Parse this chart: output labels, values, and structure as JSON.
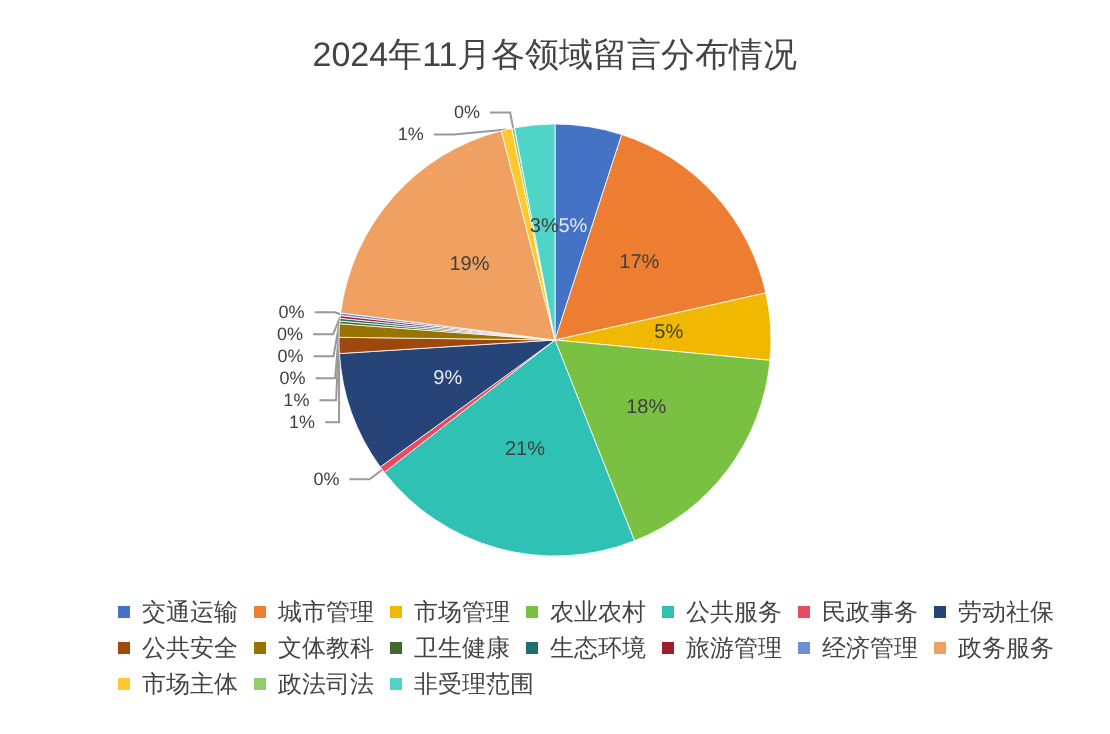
{
  "chart_data": {
    "type": "pie",
    "title": "2024年11月各领域留言分布情况",
    "categories": [
      "交通运输",
      "城市管理",
      "市场管理",
      "农业农村",
      "公共服务",
      "民政事务",
      "劳动社保",
      "公共安全",
      "文体教科",
      "卫生健康",
      "生态环境",
      "旅游管理",
      "经济管理",
      "政务服务",
      "市场主体",
      "政法司法",
      "非受理范围"
    ],
    "values": [
      5,
      16.5,
      5,
      17.5,
      20.5,
      0.5,
      9,
      1.2,
      1,
      0.2,
      0.2,
      0.2,
      0.2,
      19,
      0.8,
      0.2,
      3
    ],
    "value_labels": [
      "5%",
      "17%",
      "5%",
      "18%",
      "21%",
      "0%",
      "9%",
      "1%",
      "1%",
      "0%",
      "0%",
      "0%",
      "0%",
      "19%",
      "1%",
      "0%",
      "3%"
    ],
    "colors": [
      "#4472c4",
      "#ed7d31",
      "#f0b800",
      "#7ac143",
      "#2fc2b4",
      "#e84a5f",
      "#264478",
      "#9e480e",
      "#997300",
      "#43682b",
      "#1f6f6f",
      "#a01f2e",
      "#6f8fd6",
      "#f0a060",
      "#ffc92e",
      "#93cc6e",
      "#4fd4c8"
    ],
    "legend": "bottom"
  }
}
